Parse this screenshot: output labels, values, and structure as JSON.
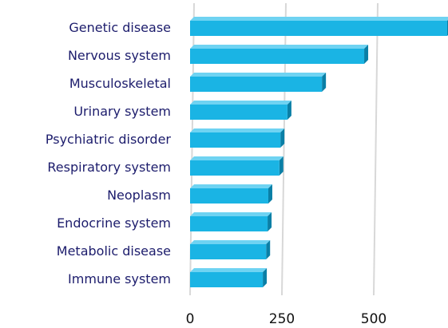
{
  "chart_data": {
    "type": "bar",
    "orientation": "horizontal",
    "categories": [
      "Genetic disease",
      "Nervous system",
      "Musculoskeletal",
      "Urinary system",
      "Psychiatric disorder",
      "Respiratory system",
      "Neoplasm",
      "Endocrine system",
      "Metabolic disease",
      "Immune system"
    ],
    "values": [
      700,
      474,
      359,
      265,
      246,
      243,
      213,
      211,
      207,
      198
    ],
    "color": "#1ab4e4",
    "xlim": [
      0,
      700
    ],
    "xticks": [
      0,
      250,
      500
    ],
    "grid": true
  }
}
